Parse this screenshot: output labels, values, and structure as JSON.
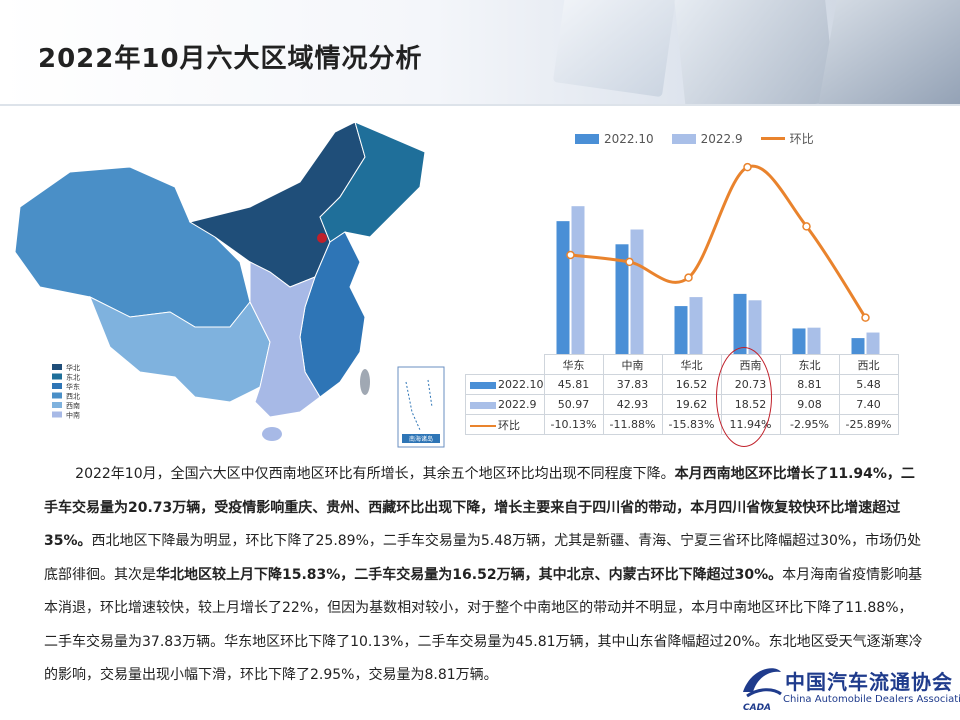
{
  "title": "2022年10月六大区域情况分析",
  "map": {
    "legend": [
      {
        "label": "华北",
        "color": "#1f4e79"
      },
      {
        "label": "东北",
        "color": "#1f6f9a"
      },
      {
        "label": "华东",
        "color": "#2e75b6"
      },
      {
        "label": "西北",
        "color": "#4a8fc7"
      },
      {
        "label": "西南",
        "color": "#7fb2de"
      },
      {
        "label": "中南",
        "color": "#a7b9e6"
      }
    ],
    "inset_label": "南海诸岛"
  },
  "chart_data": {
    "type": "bar",
    "categories": [
      "华东",
      "中南",
      "华北",
      "西南",
      "东北",
      "西北"
    ],
    "series": [
      {
        "name": "2022.10",
        "values": [
          45.81,
          37.83,
          16.52,
          20.73,
          8.81,
          5.48
        ],
        "color": "#4a8fd6"
      },
      {
        "name": "2022.9",
        "values": [
          50.97,
          42.93,
          19.62,
          18.52,
          9.08,
          7.4
        ],
        "color": "#a9bfe8"
      }
    ],
    "line_series": {
      "name": "环比",
      "values": [
        -10.13,
        -11.88,
        -15.83,
        11.94,
        -2.95,
        -25.89
      ],
      "color": "#e9832d"
    },
    "table_text": {
      "2022.10": [
        "45.81",
        "37.83",
        "16.52",
        "20.73",
        "8.81",
        "5.48"
      ],
      "2022.9": [
        "50.97",
        "42.93",
        "19.62",
        "18.52",
        "9.08",
        "7.40"
      ],
      "环比": [
        "-10.13%",
        "-11.88%",
        "-15.83%",
        "11.94%",
        "-2.95%",
        "-25.89%"
      ]
    },
    "ylim": [
      0,
      60
    ],
    "line_ylim": [
      -30,
      15
    ]
  },
  "legend": {
    "s1": "2022.10",
    "s2": "2022.9",
    "s3": "环比"
  },
  "paragraph": [
    {
      "t": "2022年10月，全国六大区中仅西南地区环比有所增长，其余五个地区环比均出现不同程度下降。",
      "b": false
    },
    {
      "t": "本月西南地区环比增长了11.94%，二手车交易量为20.73万辆，受疫情影响重庆、贵州、西藏环比出现下降，增长主要来自于四川省的带动，本月四川省恢复较快环比增速超过35%。",
      "b": true
    },
    {
      "t": "西北地区下降最为明显，环比下降了25.89%，二手车交易量为5.48万辆，尤其是新疆、青海、宁夏三省环比降幅超过30%，市场仍处底部徘徊。其次是",
      "b": false
    },
    {
      "t": "华北地区较上月下降15.83%，二手车交易量为16.52万辆，其中北京、内蒙古环比下降超过30%。",
      "b": true
    },
    {
      "t": "本月海南省疫情影响基本消退，环比增速较快，较上月增长了22%，但因为基数相对较小，对于整个中南地区的带动并不明显，本月中南地区环比下降了11.88%，二手车交易量为37.83万辆。华东地区环比下降了10.13%，二手车交易量为45.81万辆，其中山东省降幅超过20%。东北地区受天气逐渐寒冷的影响，交易量出现小幅下滑，环比下降了2.95%，交易量为8.81万辆。",
      "b": false
    }
  ],
  "logo": {
    "name": "中国汽车流通协会",
    "en": "China Automobile Dealers Association",
    "mark": "CADA"
  }
}
